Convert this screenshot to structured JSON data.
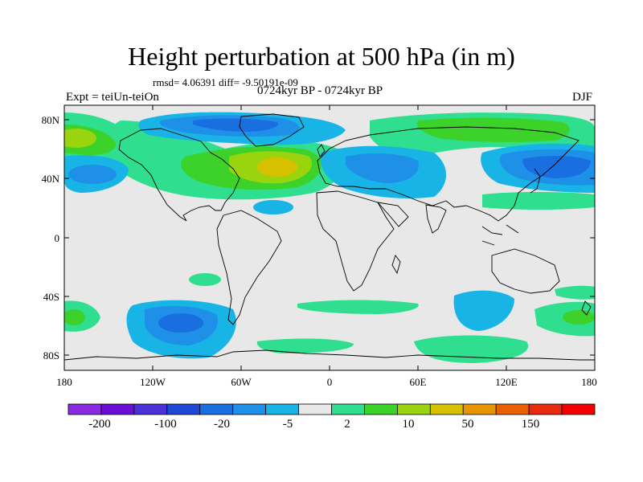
{
  "title": "Height perturbation at 500 hPa (in m)",
  "stats": "rmsd= 4.06391 diff= -9.50191e-09",
  "left_label": "Expt = teiUn-teiOn",
  "center_label": "0724kyr BP - 0724kyr BP",
  "right_label": "DJF",
  "lat_ticks": [
    "80N",
    "40N",
    "0",
    "40S",
    "80S"
  ],
  "lon_ticks": [
    "180",
    "120W",
    "60W",
    "0",
    "60E",
    "120E",
    "180"
  ],
  "colorbar": {
    "colors": [
      "#8a2be2",
      "#6a0dd6",
      "#4b32d8",
      "#1f48d6",
      "#1a6fe0",
      "#1e90e8",
      "#18b4e6",
      "#e8e8e8",
      "#2fdf8f",
      "#3cd22a",
      "#9ad40e",
      "#d7c000",
      "#e69400",
      "#e86000",
      "#e82a10",
      "#f00000"
    ],
    "labels": [
      "-200",
      "-100",
      "-20",
      "-5",
      "2",
      "10",
      "50",
      "150"
    ]
  },
  "colors": {
    "background": "#e8e8e8",
    "neg_light": "#18b4e6",
    "neg_mid": "#1e90e8",
    "neg_dark": "#1a6fe0",
    "neg_darker": "#1f48d6",
    "pos_light": "#2fdf8f",
    "pos_mid": "#3cd22a",
    "pos_strong": "#9ad40e",
    "pos_stronger": "#d7c000"
  }
}
